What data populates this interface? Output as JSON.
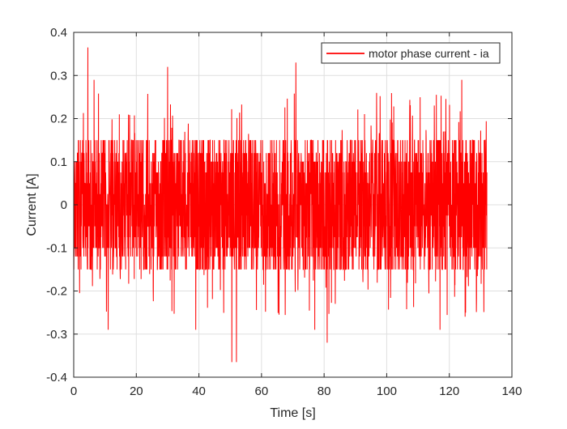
{
  "chart_data": {
    "type": "line",
    "title": "",
    "xlabel": "Time [s]",
    "ylabel": "Current [A]",
    "xlim": [
      0,
      140
    ],
    "ylim": [
      -0.4,
      0.4
    ],
    "x_ticks": [
      0,
      20,
      40,
      60,
      80,
      100,
      120,
      140
    ],
    "y_ticks": [
      -0.4,
      -0.3,
      -0.2,
      -0.1,
      0,
      0.1,
      0.2,
      0.3,
      0.4
    ],
    "x_tick_labels": [
      "0",
      "20",
      "40",
      "60",
      "80",
      "100",
      "120",
      "140"
    ],
    "y_tick_labels": [
      "-0.4",
      "-0.3",
      "-0.2",
      "-0.1",
      "0",
      "0.1",
      "0.2",
      "0.3",
      "0.4"
    ],
    "grid": true,
    "legend_position": "top-right",
    "series": [
      {
        "name": "motor phase current - ia",
        "color": "#ff0000",
        "x_range": [
          0,
          132
        ],
        "typical_range": [
          -0.15,
          0.15
        ],
        "peaks": [
          {
            "x": 4.5,
            "y": 0.365
          },
          {
            "x": 6.5,
            "y": 0.29
          },
          {
            "x": 30,
            "y": 0.32
          },
          {
            "x": 71,
            "y": 0.33
          },
          {
            "x": 124,
            "y": 0.29
          },
          {
            "x": 11,
            "y": -0.29
          },
          {
            "x": 39,
            "y": -0.29
          },
          {
            "x": 50.5,
            "y": -0.365
          },
          {
            "x": 52,
            "y": -0.365
          },
          {
            "x": 77,
            "y": -0.29
          },
          {
            "x": 81,
            "y": -0.32
          },
          {
            "x": 117,
            "y": -0.29
          }
        ]
      }
    ]
  }
}
